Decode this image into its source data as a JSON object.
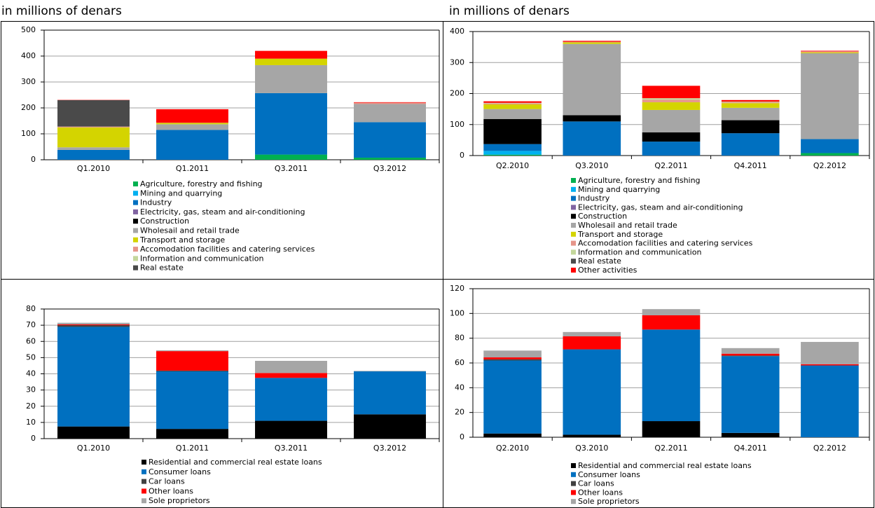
{
  "chart_data": [
    {
      "type": "bar",
      "stacked": true,
      "unit_label": "in millions of denars",
      "categories": [
        "Q1.2010",
        "Q1.2011",
        "Q3.2011",
        "Q3.2012"
      ],
      "ylim": [
        0,
        500
      ],
      "yticks": [
        0,
        100,
        200,
        300,
        400,
        500
      ],
      "grid": true,
      "series": [
        {
          "name": "Agriculture, forestry and fishing",
          "color": "#00b050",
          "values": [
            0,
            0,
            20,
            8
          ]
        },
        {
          "name": "Mining and quarrying",
          "color": "#00b0f0",
          "values": [
            0,
            0,
            0,
            0
          ]
        },
        {
          "name": "Industry",
          "color": "#0070c0",
          "values": [
            38,
            115,
            237,
            137
          ]
        },
        {
          "name": "Electricity, gas, steam and air-conditioning",
          "color": "#8064a2",
          "values": [
            0,
            0,
            0,
            0
          ]
        },
        {
          "name": "Construction",
          "color": "#000000",
          "values": [
            0,
            0,
            0,
            0
          ]
        },
        {
          "name": "Wholesail and retail trade",
          "color": "#a6a6a6",
          "values": [
            10,
            22,
            108,
            70
          ]
        },
        {
          "name": "Transport and storage",
          "color": "#d4d400",
          "values": [
            77,
            5,
            25,
            0
          ]
        },
        {
          "name": "Accomodation facilities and catering services",
          "color": "#e6958a",
          "values": [
            3,
            1,
            0,
            5
          ]
        },
        {
          "name": "Information and communication",
          "color": "#c4d79b",
          "values": [
            0,
            0,
            0,
            0
          ]
        },
        {
          "name": "Real estate",
          "color": "#4a4a4a",
          "values": [
            102,
            0,
            0,
            0
          ]
        },
        {
          "name": null,
          "color": "#ff0000",
          "values": [
            1,
            52,
            30,
            2
          ]
        }
      ]
    },
    {
      "type": "bar",
      "stacked": true,
      "unit_label": "in millions of denars",
      "categories": [
        "Q2.2010",
        "Q3.2010",
        "Q2.2011",
        "Q4.2011",
        "Q2.2012"
      ],
      "ylim": [
        0,
        400
      ],
      "yticks": [
        0,
        100,
        200,
        300,
        400
      ],
      "grid": true,
      "series": [
        {
          "name": "Agriculture, forestry and fishing",
          "color": "#00b050",
          "values": [
            3,
            0,
            0,
            0,
            8
          ]
        },
        {
          "name": "Mining and quarrying",
          "color": "#00b0f0",
          "values": [
            12,
            0,
            0,
            0,
            0
          ]
        },
        {
          "name": "Industry",
          "color": "#0070c0",
          "values": [
            22,
            110,
            45,
            72,
            45
          ]
        },
        {
          "name": "Electricity, gas, steam and air-conditioning",
          "color": "#8064a2",
          "values": [
            0,
            0,
            0,
            0,
            0
          ]
        },
        {
          "name": "Construction",
          "color": "#000000",
          "values": [
            81,
            20,
            30,
            42,
            0
          ]
        },
        {
          "name": "Wholesail and retail trade",
          "color": "#a6a6a6",
          "values": [
            32,
            230,
            72,
            40,
            277
          ]
        },
        {
          "name": "Transport and storage",
          "color": "#d4d400",
          "values": [
            15,
            5,
            25,
            15,
            3
          ]
        },
        {
          "name": "Accomodation facilities and catering services",
          "color": "#e6958a",
          "values": [
            3,
            2,
            8,
            3,
            3
          ]
        },
        {
          "name": "Information and communication",
          "color": "#c4d79b",
          "values": [
            2,
            0,
            5,
            2,
            0
          ]
        },
        {
          "name": "Real estate",
          "color": "#4a4a4a",
          "values": [
            0,
            0,
            0,
            0,
            0
          ]
        },
        {
          "name": "Other activities",
          "color": "#ff0000",
          "values": [
            5,
            3,
            40,
            5,
            2
          ]
        }
      ]
    },
    {
      "type": "bar",
      "stacked": true,
      "categories": [
        "Q1.2010",
        "Q1.2011",
        "Q3.2011",
        "Q3.2012"
      ],
      "ylim": [
        0,
        80
      ],
      "yticks": [
        0,
        10,
        20,
        30,
        40,
        50,
        60,
        70,
        80
      ],
      "grid": true,
      "series": [
        {
          "name": "Residential and commercial real estate loans",
          "color": "#000000",
          "values": [
            7.5,
            6,
            11,
            15
          ]
        },
        {
          "name": "Consumer loans",
          "color": "#0070c0",
          "values": [
            61.5,
            35.5,
            26.5,
            26.5
          ]
        },
        {
          "name": "Car loans",
          "color": "#404040",
          "values": [
            1,
            0.5,
            0,
            0
          ]
        },
        {
          "name": "Other loans",
          "color": "#ff0000",
          "values": [
            0.5,
            12,
            3,
            0
          ]
        },
        {
          "name": "Sole proprietors",
          "color": "#a6a6a6",
          "values": [
            1,
            0.5,
            7.5,
            0.3
          ]
        }
      ]
    },
    {
      "type": "bar",
      "stacked": true,
      "categories": [
        "Q2.2010",
        "Q3.2010",
        "Q2.2011",
        "Q4.2011",
        "Q2.2012"
      ],
      "ylim": [
        0,
        120
      ],
      "yticks": [
        0,
        20,
        40,
        60,
        80,
        100,
        120
      ],
      "grid": true,
      "series": [
        {
          "name": "Residential and commercial real estate loans",
          "color": "#000000",
          "values": [
            3,
            2,
            13,
            3.5,
            0
          ]
        },
        {
          "name": "Consumer loans",
          "color": "#0070c0",
          "values": [
            59,
            69,
            74,
            62,
            58
          ]
        },
        {
          "name": "Car loans",
          "color": "#404040",
          "values": [
            1,
            0,
            0,
            0.5,
            0
          ]
        },
        {
          "name": "Other loans",
          "color": "#ff0000",
          "values": [
            1.5,
            10.5,
            11.5,
            1.5,
            1
          ]
        },
        {
          "name": "Sole proprietors",
          "color": "#a6a6a6",
          "values": [
            5.5,
            3.5,
            5,
            4.5,
            18
          ]
        }
      ]
    }
  ]
}
